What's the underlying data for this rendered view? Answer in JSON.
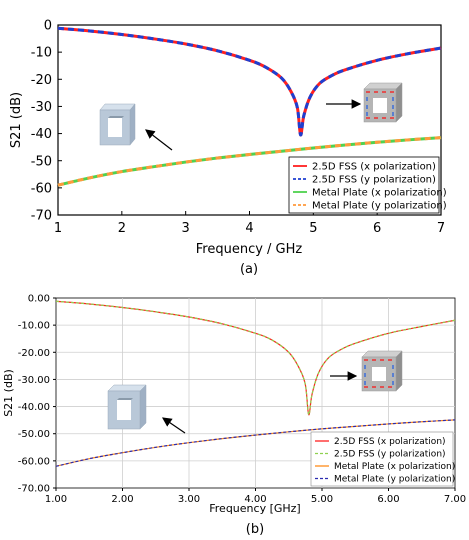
{
  "chart_data": [
    {
      "panel_label": "(a)",
      "type": "line",
      "xlabel": "Frequency / GHz",
      "ylabel": "S21 (dB)",
      "xlim": [
        1,
        7
      ],
      "ylim": [
        -70,
        0
      ],
      "xticks": [
        "1",
        "2",
        "3",
        "4",
        "5",
        "6",
        "7"
      ],
      "yticks": [
        "0",
        "-10",
        "-20",
        "-30",
        "-40",
        "-50",
        "-60",
        "-70"
      ],
      "grid": false,
      "legend_position": "bottom-right",
      "series": [
        {
          "name": "2.5D FSS (x polarization)",
          "color": "#ff2020",
          "style": "solid",
          "x": [
            1.0,
            1.5,
            2.0,
            2.5,
            3.0,
            3.5,
            4.0,
            4.25,
            4.5,
            4.65,
            4.75,
            4.8,
            4.85,
            4.95,
            5.1,
            5.3,
            5.5,
            6.0,
            6.5,
            7.0
          ],
          "y": [
            -1.2,
            -2.2,
            -3.5,
            -5.1,
            -7.0,
            -9.5,
            -13.0,
            -15.5,
            -19.5,
            -24.5,
            -30.5,
            -40.5,
            -33.5,
            -26.5,
            -21.5,
            -18.5,
            -16.5,
            -13.0,
            -10.5,
            -8.5
          ]
        },
        {
          "name": "2.5D FSS (y polarization)",
          "color": "#1f3fd0",
          "style": "dashed",
          "x": [
            1.0,
            1.5,
            2.0,
            2.5,
            3.0,
            3.5,
            4.0,
            4.25,
            4.5,
            4.65,
            4.75,
            4.8,
            4.85,
            4.95,
            5.1,
            5.3,
            5.5,
            6.0,
            6.5,
            7.0
          ],
          "y": [
            -1.2,
            -2.2,
            -3.5,
            -5.1,
            -7.0,
            -9.5,
            -13.0,
            -15.5,
            -19.5,
            -24.5,
            -30.5,
            -40.5,
            -33.5,
            -26.5,
            -21.5,
            -18.5,
            -16.5,
            -13.0,
            -10.5,
            -8.5
          ]
        },
        {
          "name": "Metal Plate (x polarization)",
          "color": "#4fd24f",
          "style": "solid",
          "x": [
            1,
            1.5,
            2,
            2.5,
            3,
            3.5,
            4,
            4.5,
            5,
            5.5,
            6,
            6.5,
            7
          ],
          "y": [
            -59.0,
            -56.3,
            -54.0,
            -52.2,
            -50.5,
            -49.0,
            -47.7,
            -46.5,
            -45.3,
            -44.2,
            -43.2,
            -42.3,
            -41.5
          ]
        },
        {
          "name": "Metal Plate (y polarization)",
          "color": "#ff9a3c",
          "style": "dashed",
          "x": [
            1,
            1.5,
            2,
            2.5,
            3,
            3.5,
            4,
            4.5,
            5,
            5.5,
            6,
            6.5,
            7
          ],
          "y": [
            -59.0,
            -56.3,
            -54.0,
            -52.2,
            -50.5,
            -49.0,
            -47.7,
            -46.5,
            -45.3,
            -44.2,
            -43.2,
            -42.3,
            -41.5
          ]
        }
      ]
    },
    {
      "panel_label": "(b)",
      "type": "line",
      "xlabel": "Frequency [GHz]",
      "ylabel": "S21 (dB)",
      "xlim": [
        1,
        7
      ],
      "ylim": [
        -70,
        0
      ],
      "xticks": [
        "1.00",
        "2.00",
        "3.00",
        "4.00",
        "5.00",
        "6.00",
        "7.00"
      ],
      "yticks": [
        "0.00",
        "-10.00",
        "-20.00",
        "-30.00",
        "-40.00",
        "-50.00",
        "-60.00",
        "-70.00"
      ],
      "grid": true,
      "legend_position": "bottom-right",
      "series": [
        {
          "name": "2.5D FSS (x polarization)",
          "color": "#ff2020",
          "style": "solid",
          "x": [
            1.0,
            1.5,
            2.0,
            2.5,
            3.0,
            3.5,
            4.0,
            4.25,
            4.5,
            4.65,
            4.75,
            4.8,
            4.85,
            4.95,
            5.1,
            5.3,
            5.5,
            6.0,
            6.5,
            7.0
          ],
          "y": [
            -1.2,
            -2.2,
            -3.5,
            -5.1,
            -7.0,
            -9.5,
            -13.0,
            -15.5,
            -20.0,
            -25.5,
            -32.0,
            -43.0,
            -35.5,
            -27.5,
            -22.0,
            -18.8,
            -16.7,
            -13.0,
            -10.5,
            -8.2
          ]
        },
        {
          "name": "2.5D FSS (y polarization)",
          "color": "#8fd14f",
          "style": "dashed",
          "x": [
            1.0,
            1.5,
            2.0,
            2.5,
            3.0,
            3.5,
            4.0,
            4.25,
            4.5,
            4.65,
            4.75,
            4.8,
            4.85,
            4.95,
            5.1,
            5.3,
            5.5,
            6.0,
            6.5,
            7.0
          ],
          "y": [
            -1.2,
            -2.2,
            -3.5,
            -5.1,
            -7.0,
            -9.5,
            -13.0,
            -15.5,
            -20.0,
            -25.5,
            -32.0,
            -43.0,
            -35.5,
            -27.5,
            -22.0,
            -18.8,
            -16.7,
            -13.0,
            -10.5,
            -8.2
          ]
        },
        {
          "name": "Metal Plate (x polarization)",
          "color": "#ff8c1a",
          "style": "solid",
          "x": [
            1,
            1.5,
            2,
            2.5,
            3,
            3.5,
            4,
            4.5,
            5,
            5.5,
            6,
            6.5,
            7
          ],
          "y": [
            -62.0,
            -59.2,
            -57.0,
            -55.0,
            -53.3,
            -51.8,
            -50.5,
            -49.3,
            -48.2,
            -47.3,
            -46.4,
            -45.6,
            -44.9
          ]
        },
        {
          "name": "Metal Plate (y polarization)",
          "color": "#2b2bb0",
          "style": "dashed",
          "x": [
            1,
            1.5,
            2,
            2.5,
            3,
            3.5,
            4,
            4.5,
            5,
            5.5,
            6,
            6.5,
            7
          ],
          "y": [
            -62.0,
            -59.2,
            -57.0,
            -55.0,
            -53.3,
            -51.8,
            -50.5,
            -49.3,
            -48.2,
            -47.3,
            -46.4,
            -45.6,
            -44.9
          ]
        }
      ]
    }
  ]
}
